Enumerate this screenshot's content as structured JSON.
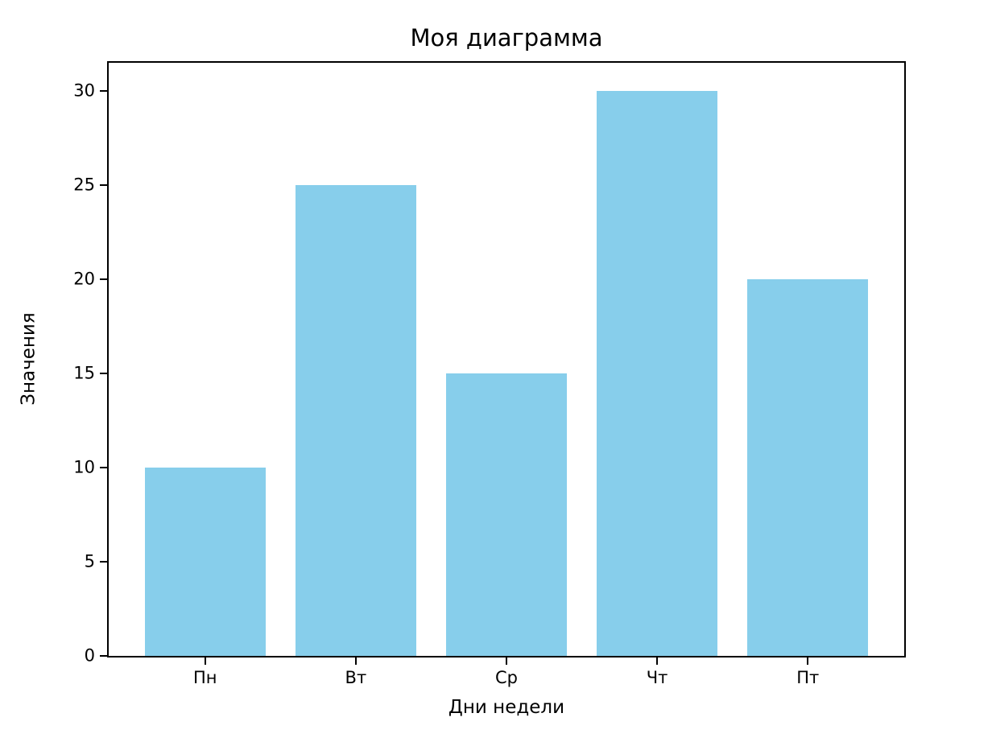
{
  "figure": {
    "background_color": "#ffffff",
    "spine_color": "#000000",
    "text_color": "#000000"
  },
  "chart_data": {
    "type": "bar",
    "title": "Моя диаграмма",
    "xlabel": "Дни недели",
    "ylabel": "Значения",
    "categories": [
      "Пн",
      "Вт",
      "Ср",
      "Чт",
      "Пт"
    ],
    "values": [
      10,
      25,
      15,
      30,
      20
    ],
    "yticks": [
      0,
      5,
      10,
      15,
      20,
      25,
      30
    ],
    "ylim": [
      0,
      31.5
    ],
    "xlim": [
      -0.64,
      4.64
    ],
    "bar_width_fraction": 0.8,
    "bar_color": "#87CEEB",
    "grid": false,
    "legend_position": "none"
  }
}
